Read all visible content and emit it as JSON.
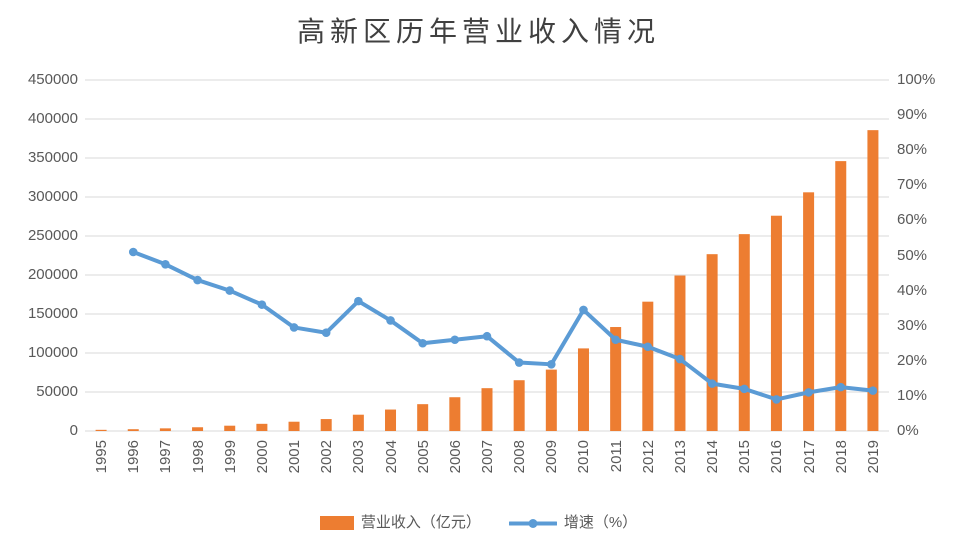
{
  "chart_data": {
    "type": "bar",
    "title": "高新区历年营业收入情况",
    "categories": [
      "1995",
      "1996",
      "1997",
      "1998",
      "1999",
      "2000",
      "2001",
      "2002",
      "2003",
      "2004",
      "2005",
      "2006",
      "2007",
      "2008",
      "2009",
      "2010",
      "2011",
      "2012",
      "2013",
      "2014",
      "2015",
      "2016",
      "2017",
      "2018",
      "2019"
    ],
    "series": [
      {
        "name": "营业收入（亿元）",
        "type": "bar",
        "axis": "left",
        "color": "#ED7D31",
        "values": [
          1500,
          2300,
          3400,
          4800,
          6800,
          9200,
          11900,
          15300,
          20900,
          27500,
          34400,
          43300,
          54900,
          65100,
          78700,
          105900,
          133300,
          165800,
          199300,
          226700,
          252400,
          276000,
          306000,
          346000,
          385700
        ]
      },
      {
        "name": "增速（%）",
        "type": "line",
        "axis": "right",
        "color": "#5B9BD5",
        "values": [
          null,
          51,
          47.5,
          43,
          40,
          36,
          29.5,
          28,
          37,
          31.5,
          25,
          26,
          27,
          19.5,
          19,
          34.5,
          26,
          24,
          20.5,
          13.5,
          12,
          9,
          11,
          12.5,
          11.5
        ]
      }
    ],
    "left_axis": {
      "min": 0,
      "max": 450000,
      "step": 50000,
      "tick_labels": [
        "0",
        "50000",
        "100000",
        "150000",
        "200000",
        "250000",
        "300000",
        "350000",
        "400000",
        "450000"
      ]
    },
    "right_axis": {
      "min": 0,
      "max": 100,
      "step": 10,
      "tick_labels": [
        "0%",
        "10%",
        "20%",
        "30%",
        "40%",
        "50%",
        "60%",
        "70%",
        "80%",
        "90%",
        "100%"
      ]
    },
    "grid": true,
    "legend_position": "bottom",
    "colors": {
      "bar": "#ED7D31",
      "line": "#5B9BD5",
      "gridline": "#D9D9D9",
      "axis_text": "#595959",
      "title_text": "#404040",
      "background": "#FFFFFF"
    }
  }
}
